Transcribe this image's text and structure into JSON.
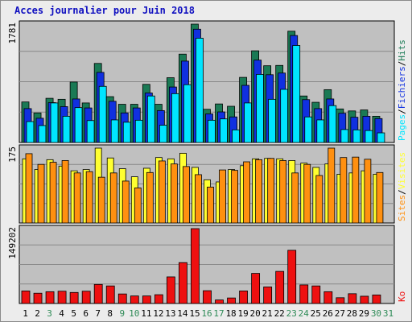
{
  "title": "Acces journalier pour Juin 2018",
  "colors": {
    "pages": "#00e5ff",
    "fichiers": "#1030e0",
    "hits": "#1a7a55",
    "visites": "#ffff30",
    "sites": "#ff9010",
    "ko": "#ee1010",
    "day_weekday": "#000000",
    "day_weekend": "#2e8b57",
    "panel_bg": "#c0c0c0",
    "title": "#1010c0"
  },
  "chart_data": [
    {
      "type": "bar",
      "panel": "hits-fichiers-pages",
      "ymax_label": "1781",
      "ylim": [
        0,
        1781
      ],
      "legend": [
        "Pages",
        "/",
        "Fichiers",
        "/",
        "Hits"
      ],
      "categories": [
        "1",
        "2",
        "3",
        "4",
        "5",
        "6",
        "7",
        "8",
        "9",
        "10",
        "11",
        "12",
        "13",
        "14",
        "15",
        "16",
        "17",
        "18",
        "19",
        "20",
        "21",
        "22",
        "23",
        "24",
        "25",
        "26",
        "27",
        "28",
        "29",
        "30",
        "31"
      ],
      "series": [
        {
          "name": "Hits",
          "values": [
            610,
            445,
            665,
            650,
            910,
            595,
            1190,
            690,
            575,
            575,
            875,
            575,
            975,
            1330,
            1781,
            500,
            580,
            545,
            980,
            1380,
            1155,
            1160,
            1675,
            700,
            605,
            795,
            505,
            475,
            490,
            395,
            0
          ]
        },
        {
          "name": "Fichiers",
          "values": [
            510,
            365,
            600,
            540,
            655,
            520,
            1055,
            620,
            445,
            520,
            745,
            480,
            835,
            1225,
            1705,
            430,
            460,
            385,
            860,
            1240,
            1020,
            1045,
            1610,
            645,
            510,
            655,
            440,
            380,
            395,
            360,
            0
          ]
        },
        {
          "name": "Pages",
          "values": [
            315,
            255,
            595,
            395,
            525,
            330,
            845,
            340,
            305,
            335,
            700,
            260,
            735,
            870,
            1570,
            335,
            355,
            190,
            595,
            1025,
            650,
            800,
            1460,
            385,
            340,
            555,
            195,
            190,
            180,
            145,
            0
          ]
        }
      ]
    },
    {
      "type": "bar",
      "panel": "visites-sites",
      "ymax_label": "175",
      "ylim": [
        0,
        175
      ],
      "legend": [
        "Sites",
        "/",
        "Visites"
      ],
      "categories": [
        "1",
        "2",
        "3",
        "4",
        "5",
        "6",
        "7",
        "8",
        "9",
        "10",
        "11",
        "12",
        "13",
        "14",
        "15",
        "16",
        "17",
        "18",
        "19",
        "20",
        "21",
        "22",
        "23",
        "24",
        "25",
        "26",
        "27",
        "28",
        "29",
        "30",
        "31"
      ],
      "series": [
        {
          "name": "Visites",
          "values": [
            150,
            125,
            148,
            133,
            122,
            125,
            175,
            152,
            127,
            108,
            128,
            153,
            150,
            163,
            130,
            101,
            96,
            125,
            134,
            150,
            151,
            150,
            146,
            140,
            130,
            138,
            114,
            117,
            122,
            114,
            0
          ]
        },
        {
          "name": "Sites",
          "values": [
            162,
            137,
            142,
            146,
            117,
            120,
            107,
            117,
            98,
            82,
            118,
            145,
            138,
            132,
            113,
            84,
            124,
            123,
            143,
            148,
            151,
            146,
            117,
            137,
            111,
            175,
            153,
            154,
            149,
            118,
            0
          ]
        }
      ]
    },
    {
      "type": "bar",
      "panel": "ko",
      "ymax_label": "149202",
      "ylim": [
        0,
        149202
      ],
      "legend": [
        "Ko"
      ],
      "categories": [
        "1",
        "2",
        "3",
        "4",
        "5",
        "6",
        "7",
        "8",
        "9",
        "10",
        "11",
        "12",
        "13",
        "14",
        "15",
        "16",
        "17",
        "18",
        "19",
        "20",
        "21",
        "22",
        "23",
        "24",
        "25",
        "26",
        "27",
        "28",
        "29",
        "30",
        "31"
      ],
      "series": [
        {
          "name": "Ko",
          "values": [
            25000,
            20500,
            23500,
            24500,
            22000,
            24500,
            38000,
            35000,
            19000,
            15000,
            15000,
            17500,
            53000,
            81500,
            149202,
            25500,
            7000,
            11000,
            25000,
            60000,
            33000,
            64000,
            106000,
            37000,
            35000,
            23500,
            11500,
            19500,
            14500,
            17000,
            0
          ]
        }
      ]
    }
  ],
  "days": [
    {
      "label": "1",
      "weekend": false
    },
    {
      "label": "2",
      "weekend": false
    },
    {
      "label": "3",
      "weekend": true
    },
    {
      "label": "4",
      "weekend": false
    },
    {
      "label": "5",
      "weekend": false
    },
    {
      "label": "6",
      "weekend": false
    },
    {
      "label": "7",
      "weekend": false
    },
    {
      "label": "8",
      "weekend": false
    },
    {
      "label": "9",
      "weekend": true
    },
    {
      "label": "10",
      "weekend": true
    },
    {
      "label": "11",
      "weekend": false
    },
    {
      "label": "12",
      "weekend": false
    },
    {
      "label": "13",
      "weekend": false
    },
    {
      "label": "14",
      "weekend": false
    },
    {
      "label": "15",
      "weekend": false
    },
    {
      "label": "16",
      "weekend": true
    },
    {
      "label": "17",
      "weekend": true
    },
    {
      "label": "18",
      "weekend": false
    },
    {
      "label": "19",
      "weekend": false
    },
    {
      "label": "20",
      "weekend": false
    },
    {
      "label": "21",
      "weekend": false
    },
    {
      "label": "22",
      "weekend": false
    },
    {
      "label": "23",
      "weekend": true
    },
    {
      "label": "24",
      "weekend": true
    },
    {
      "label": "25",
      "weekend": false
    },
    {
      "label": "26",
      "weekend": false
    },
    {
      "label": "27",
      "weekend": false
    },
    {
      "label": "28",
      "weekend": false
    },
    {
      "label": "29",
      "weekend": false
    },
    {
      "label": "30",
      "weekend": true
    },
    {
      "label": "31",
      "weekend": true
    }
  ]
}
